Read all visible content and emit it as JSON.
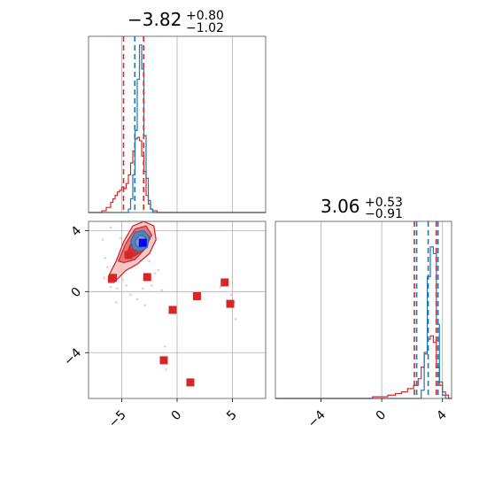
{
  "chart_data": {
    "type": "corner",
    "colors": {
      "red": "#d62728",
      "blue": "#1f77b4",
      "truth": "#0000ff",
      "grid": "#b0b0b0"
    },
    "params": [
      {
        "title_main": "−3.82",
        "title_sup": "+0.80",
        "title_sub": "−1.02",
        "median": -3.82,
        "red_quantiles": [
          -4.84,
          -3.02
        ],
        "blue_quantiles": [
          -4.84,
          -3.82,
          -3.02
        ],
        "range": [
          -8.0,
          8.0
        ],
        "ticks": [
          -5,
          0,
          5
        ],
        "tick_labels": [
          "−5",
          "0",
          "5"
        ]
      },
      {
        "title_main": "3.06",
        "title_sup": "+0.53",
        "title_sub": "−0.91",
        "median": 3.06,
        "red_quantiles": [
          2.15,
          3.59
        ],
        "blue_quantiles": [
          2.15,
          3.06,
          3.59
        ],
        "range": [
          -7.0,
          4.6
        ],
        "ticks": [
          -4,
          0,
          4
        ],
        "tick_labels": [
          "−4",
          "0",
          "4"
        ]
      }
    ],
    "hist_red_param0": [
      [
        -8.0,
        0.0
      ],
      [
        -7.0,
        0.0
      ],
      [
        -6.8,
        0.01
      ],
      [
        -6.4,
        0.03
      ],
      [
        -6.0,
        0.06
      ],
      [
        -5.8,
        0.08
      ],
      [
        -5.6,
        0.1
      ],
      [
        -5.4,
        0.12
      ],
      [
        -5.2,
        0.13
      ],
      [
        -5.0,
        0.15
      ],
      [
        -4.8,
        0.14
      ],
      [
        -4.6,
        0.17
      ],
      [
        -4.4,
        0.22
      ],
      [
        -4.2,
        0.29
      ],
      [
        -4.0,
        0.36
      ],
      [
        -3.8,
        0.43
      ],
      [
        -3.6,
        0.44
      ],
      [
        -3.4,
        0.42
      ],
      [
        -3.2,
        0.33
      ],
      [
        -3.0,
        0.24
      ],
      [
        -2.8,
        0.1
      ],
      [
        -2.6,
        0.05
      ],
      [
        -2.4,
        0.02
      ],
      [
        -2.2,
        0.01
      ],
      [
        -1.8,
        0.0
      ],
      [
        8.0,
        0.0
      ]
    ],
    "hist_blue_param0": [
      [
        -8.0,
        0.0
      ],
      [
        -4.6,
        0.0
      ],
      [
        -4.4,
        0.02
      ],
      [
        -4.2,
        0.08
      ],
      [
        -4.0,
        0.22
      ],
      [
        -3.8,
        0.48
      ],
      [
        -3.6,
        0.78
      ],
      [
        -3.4,
        0.98
      ],
      [
        -3.2,
        0.84
      ],
      [
        -3.0,
        0.45
      ],
      [
        -2.8,
        0.2
      ],
      [
        -2.6,
        0.07
      ],
      [
        -2.4,
        0.02
      ],
      [
        -2.2,
        0.0
      ],
      [
        8.0,
        0.0
      ]
    ],
    "hist_red_param1": [
      [
        -7.0,
        0.0
      ],
      [
        -1.0,
        0.0
      ],
      [
        -0.6,
        0.01
      ],
      [
        -0.2,
        0.01
      ],
      [
        0.4,
        0.02
      ],
      [
        0.9,
        0.03
      ],
      [
        1.3,
        0.04
      ],
      [
        1.7,
        0.06
      ],
      [
        2.1,
        0.08
      ],
      [
        2.4,
        0.12
      ],
      [
        2.6,
        0.19
      ],
      [
        2.8,
        0.27
      ],
      [
        3.0,
        0.36
      ],
      [
        3.2,
        0.38
      ],
      [
        3.4,
        0.34
      ],
      [
        3.6,
        0.19
      ],
      [
        3.8,
        0.08
      ],
      [
        4.0,
        0.04
      ],
      [
        4.2,
        0.02
      ],
      [
        4.4,
        0.0
      ],
      [
        4.6,
        0.0
      ]
    ],
    "hist_blue_param1": [
      [
        -7.0,
        0.0
      ],
      [
        2.4,
        0.0
      ],
      [
        2.6,
        0.05
      ],
      [
        2.8,
        0.28
      ],
      [
        3.0,
        0.74
      ],
      [
        3.2,
        0.92
      ],
      [
        3.4,
        0.88
      ],
      [
        3.6,
        0.45
      ],
      [
        3.8,
        0.1
      ],
      [
        4.0,
        0.02
      ],
      [
        4.2,
        0.0
      ],
      [
        4.6,
        0.0
      ]
    ],
    "contours": [
      {
        "name": "outer",
        "fill": "#f4c2c2",
        "points": [
          [
            -6.2,
            1.0
          ],
          [
            -5.5,
            2.0
          ],
          [
            -4.8,
            3.3
          ],
          [
            -4.0,
            4.3
          ],
          [
            -3.0,
            4.6
          ],
          [
            -2.1,
            4.3
          ],
          [
            -1.9,
            3.4
          ],
          [
            -2.5,
            2.5
          ],
          [
            -3.6,
            1.8
          ],
          [
            -4.6,
            1.4
          ],
          [
            -5.7,
            0.6
          ],
          [
            -6.2,
            0.6
          ]
        ]
      },
      {
        "name": "mid",
        "fill": "#e06c75",
        "points": [
          [
            -5.3,
            2.0
          ],
          [
            -4.6,
            3.2
          ],
          [
            -3.8,
            4.1
          ],
          [
            -2.8,
            4.3
          ],
          [
            -2.3,
            3.7
          ],
          [
            -2.9,
            2.8
          ],
          [
            -3.8,
            2.1
          ],
          [
            -4.8,
            1.9
          ]
        ]
      },
      {
        "name": "inner",
        "fill": "#d62728",
        "points": [
          [
            -4.7,
            2.3
          ],
          [
            -4.0,
            3.4
          ],
          [
            -3.2,
            3.9
          ],
          [
            -2.6,
            3.5
          ],
          [
            -3.1,
            2.7
          ],
          [
            -3.9,
            2.3
          ]
        ]
      },
      {
        "name": "blue-outer",
        "fill": "#5e7fb3",
        "points": [
          [
            -4.2,
            3.3
          ],
          [
            -3.8,
            3.9
          ],
          [
            -3.0,
            4.0
          ],
          [
            -2.5,
            3.6
          ],
          [
            -2.7,
            2.9
          ],
          [
            -3.4,
            2.6
          ],
          [
            -4.0,
            2.8
          ]
        ]
      },
      {
        "name": "blue-inner",
        "fill": "#8c9cc8",
        "points": [
          [
            -3.8,
            3.3
          ],
          [
            -3.4,
            3.7
          ],
          [
            -2.9,
            3.6
          ],
          [
            -2.8,
            3.1
          ],
          [
            -3.3,
            2.9
          ],
          [
            -3.7,
            3.0
          ]
        ]
      }
    ],
    "outliers": [
      [
        -5.8,
        0.9
      ],
      [
        -2.7,
        0.95
      ],
      [
        -0.4,
        -1.2
      ],
      [
        1.8,
        -0.3
      ],
      [
        4.3,
        0.6
      ],
      [
        4.8,
        -0.8
      ],
      [
        -1.2,
        -4.5
      ],
      [
        1.2,
        -5.95
      ],
      [
        -4.4,
        2.4
      ]
    ],
    "faint_points": [
      [
        -6.3,
        1.6
      ],
      [
        -6.0,
        0.3
      ],
      [
        -5.4,
        0.2
      ],
      [
        -5.2,
        1.3
      ],
      [
        -4.9,
        0.8
      ],
      [
        -4.6,
        0.4
      ],
      [
        -6.5,
        2.2
      ],
      [
        -3.1,
        0.2
      ],
      [
        -2.3,
        0.4
      ],
      [
        -2.0,
        1.2
      ],
      [
        -3.6,
        -0.5
      ],
      [
        -5.5,
        -0.7
      ],
      [
        -1.1,
        -3.6
      ],
      [
        -1.0,
        -5.1
      ],
      [
        3.9,
        0.3
      ],
      [
        5.3,
        -1.8
      ],
      [
        4.9,
        -0.2
      ],
      [
        -5.1,
        3.5
      ],
      [
        -6.7,
        3.4
      ],
      [
        -6.0,
        4.2
      ],
      [
        -1.7,
        1.4
      ],
      [
        -2.9,
        -0.9
      ],
      [
        -4.2,
        -0.2
      ],
      [
        5.2,
        -0.7
      ],
      [
        -6.6,
        0.9
      ],
      [
        -2.5,
        2.0
      ],
      [
        -1.4,
        0.1
      ]
    ],
    "truth_point": [
      -3.1,
      3.2
    ]
  }
}
